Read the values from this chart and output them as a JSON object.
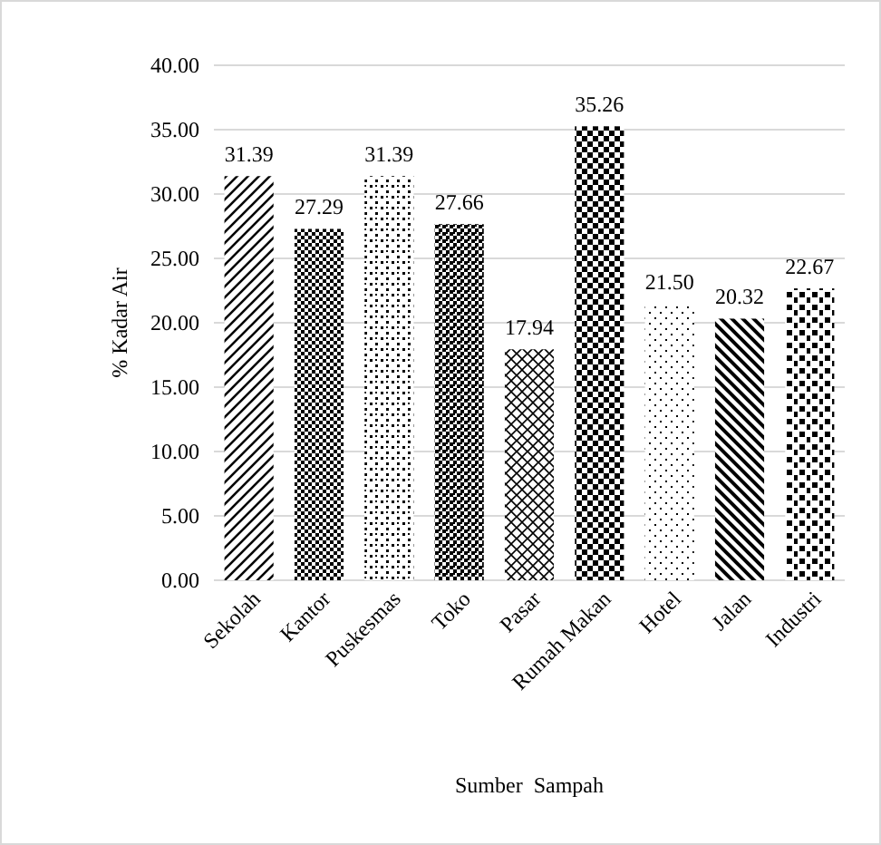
{
  "chart_data": {
    "type": "bar",
    "xlabel": "Sumber  Sampah",
    "ylabel": "% Kadar Air",
    "categories": [
      "Sekolah",
      "Kantor",
      "Puskesmas",
      "Toko",
      "Pasar",
      "Rumah Makan",
      "Hotel",
      "Jalan",
      "Industri"
    ],
    "values": [
      31.39,
      27.29,
      31.39,
      27.66,
      17.94,
      35.26,
      21.5,
      20.32,
      22.67
    ],
    "value_labels": [
      "31.39",
      "27.29",
      "31.39",
      "27.66",
      "17.94",
      "35.26",
      "21.50",
      "20.32",
      "22.67"
    ],
    "color": "#000000",
    "ylim": [
      0,
      40
    ],
    "yticks": [
      {
        "value": 0,
        "label": "0.00"
      },
      {
        "value": 5,
        "label": "5.00"
      },
      {
        "value": 10,
        "label": "10.00"
      },
      {
        "value": 15,
        "label": "15.00"
      },
      {
        "value": 20,
        "label": "20.00"
      },
      {
        "value": 25,
        "label": "25.00"
      },
      {
        "value": 30,
        "label": "30.00"
      },
      {
        "value": 35,
        "label": "35.00"
      },
      {
        "value": 40,
        "label": "40.00"
      }
    ],
    "grid": "y"
  }
}
